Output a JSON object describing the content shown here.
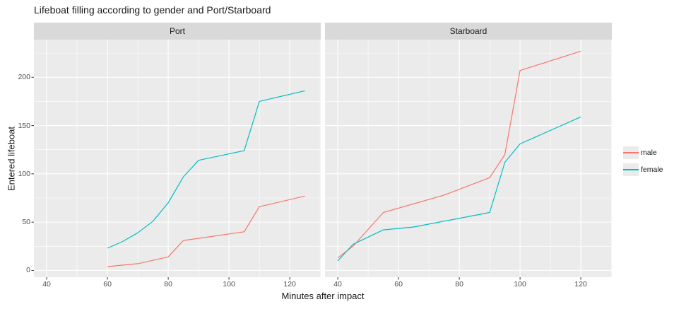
{
  "chart_data": {
    "type": "line",
    "title": "Lifeboat filling according to gender and Port/Starboard",
    "xlabel": "Minutes after impact",
    "ylabel": "Entered lifeboat",
    "xlim": [
      35.8,
      130.2
    ],
    "ylim": [
      -7,
      239
    ],
    "x_ticks": [
      40,
      60,
      80,
      100,
      120
    ],
    "x_tick_labels": [
      "40",
      "60",
      "80",
      "100",
      "120"
    ],
    "x_minor": [
      50,
      70,
      90,
      110,
      130
    ],
    "y_ticks": [
      0,
      50,
      100,
      150,
      200
    ],
    "y_tick_labels": [
      "0",
      "50",
      "100",
      "150",
      "200"
    ],
    "y_minor": [
      25,
      75,
      125,
      175,
      225
    ],
    "grid": true,
    "legend_position": "right",
    "colors": {
      "panel_bg": "#EBEBEB",
      "strip_bg": "#D9D9D9",
      "grid": "#FFFFFF",
      "tick_mark": "#333333",
      "tick_text": "#4d4d4d",
      "male": "#F8766D",
      "female": "#00BFC4"
    },
    "facets": [
      {
        "label": "Port",
        "series": [
          {
            "name": "male",
            "color": "#F8766D",
            "points": [
              [
                60,
                4
              ],
              [
                70,
                7
              ],
              [
                80,
                14
              ],
              [
                85,
                31
              ],
              [
                105,
                40
              ],
              [
                110,
                66
              ],
              [
                125,
                77
              ]
            ]
          },
          {
            "name": "female",
            "color": "#00BFC4",
            "points": [
              [
                60,
                23
              ],
              [
                65,
                30
              ],
              [
                70,
                39
              ],
              [
                75,
                51
              ],
              [
                80,
                70
              ],
              [
                85,
                97
              ],
              [
                90,
                114
              ],
              [
                105,
                124
              ],
              [
                110,
                175
              ],
              [
                125,
                186
              ]
            ]
          }
        ]
      },
      {
        "label": "Starboard",
        "series": [
          {
            "name": "male",
            "color": "#F8766D",
            "points": [
              [
                40,
                13
              ],
              [
                45,
                25
              ],
              [
                55,
                60
              ],
              [
                75,
                78
              ],
              [
                90,
                96
              ],
              [
                95,
                120
              ],
              [
                100,
                207
              ],
              [
                120,
                227
              ]
            ]
          },
          {
            "name": "female",
            "color": "#00BFC4",
            "points": [
              [
                40,
                10
              ],
              [
                45,
                27
              ],
              [
                55,
                42
              ],
              [
                65,
                45
              ],
              [
                90,
                60
              ],
              [
                95,
                112
              ],
              [
                100,
                131
              ],
              [
                120,
                159
              ]
            ]
          }
        ]
      }
    ],
    "legend": [
      {
        "label": "male",
        "color": "#F8766D"
      },
      {
        "label": "female",
        "color": "#00BFC4"
      }
    ]
  }
}
